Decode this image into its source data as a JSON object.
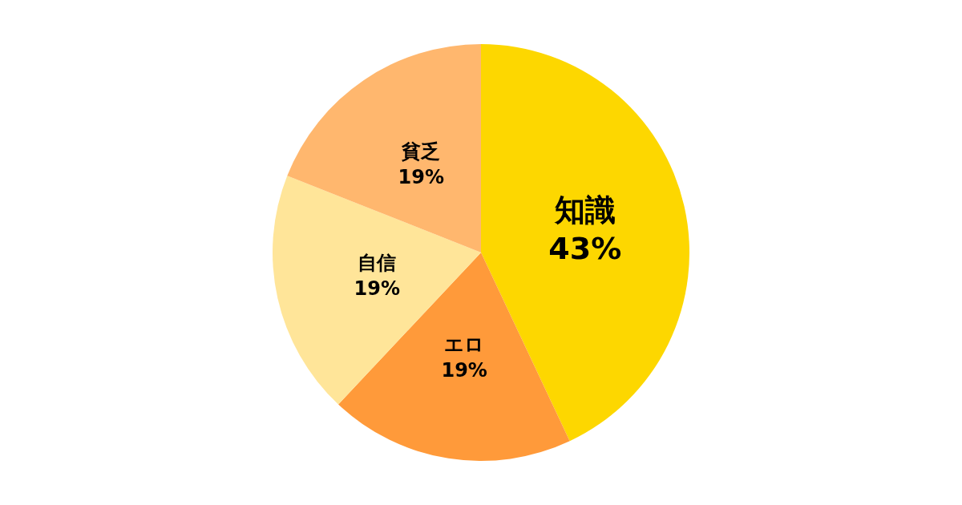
{
  "chart_data": {
    "type": "pie",
    "categories": [
      "知識",
      "エロ",
      "自信",
      "貧乏"
    ],
    "values": [
      43,
      19,
      19,
      19
    ],
    "colors": [
      "#fdd700",
      "#ff9a3a",
      "#ffe599",
      "#ffb76e"
    ],
    "value_labels": [
      "43%",
      "19%",
      "19%",
      "19%"
    ],
    "legend": false
  }
}
